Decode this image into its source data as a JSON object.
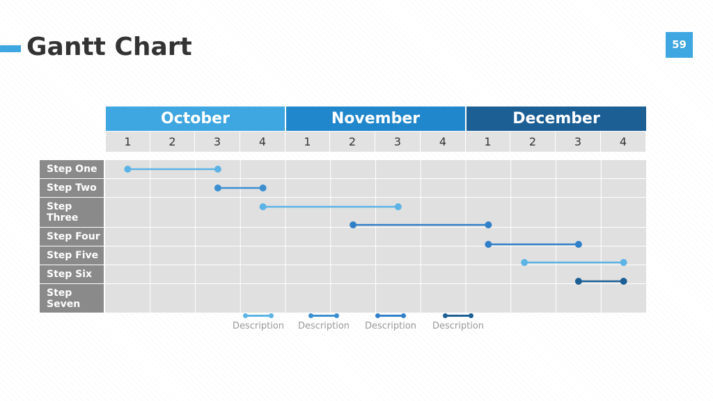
{
  "title": "Gantt Chart",
  "page_number": "59",
  "months": [
    {
      "label": "October",
      "color": "#3ea6e0"
    },
    {
      "label": "November",
      "color": "#2187cc"
    },
    {
      "label": "December",
      "color": "#1c5f95"
    }
  ],
  "weeks": [
    "1",
    "2",
    "3",
    "4",
    "1",
    "2",
    "3",
    "4",
    "1",
    "2",
    "3",
    "4"
  ],
  "steps": [
    "Step One",
    "Step Two",
    "Step Three",
    "Step Four",
    "Step Five",
    "Step Six",
    "Step Seven"
  ],
  "chart_data": {
    "type": "gantt",
    "time_unit": "week",
    "tasks": [
      {
        "name": "Step One",
        "start": 1.0,
        "end": 3.0,
        "color": "#5bb3e6"
      },
      {
        "name": "Step Two",
        "start": 3.0,
        "end": 4.0,
        "color": "#3b8fd1"
      },
      {
        "name": "Step Three",
        "start": 4.0,
        "end": 7.0,
        "color": "#5bb3e6"
      },
      {
        "name": "Step Three",
        "start": 6.0,
        "end": 9.0,
        "color": "#2f80c9"
      },
      {
        "name": "Step Four",
        "start": 9.0,
        "end": 11.0,
        "color": "#2f80c9"
      },
      {
        "name": "Step Five",
        "start": 9.8,
        "end": 12.0,
        "color": "#5bb3e6"
      },
      {
        "name": "Step Six",
        "start": 11.0,
        "end": 12.0,
        "color": "#1c5f95"
      }
    ]
  },
  "legend": [
    {
      "label": "Description",
      "color": "#5bb3e6"
    },
    {
      "label": "Description",
      "color": "#3b8fd1"
    },
    {
      "label": "Description",
      "color": "#2f80c9"
    },
    {
      "label": "Description",
      "color": "#1c5f95"
    }
  ]
}
